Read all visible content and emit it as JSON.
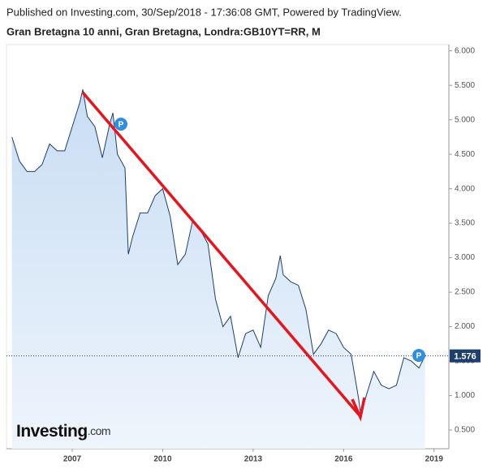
{
  "header": {
    "published": "Published on Investing.com, 30/Sep/2018 - 17:36:08 GMT, Powered by TradingView.",
    "title": "Gran Bretagna 10 anni, Gran Bretagna, Londra:GB10YT=RR, M"
  },
  "logo": {
    "brand": "Investing",
    "suffix": ".com"
  },
  "chart_data": {
    "type": "area",
    "x": [
      2005.0,
      2005.25,
      2005.5,
      2005.75,
      2006.0,
      2006.25,
      2006.5,
      2006.75,
      2007.0,
      2007.25,
      2007.35,
      2007.5,
      2007.75,
      2008.0,
      2008.25,
      2008.35,
      2008.5,
      2008.75,
      2008.86,
      2009.0,
      2009.25,
      2009.5,
      2009.75,
      2010.0,
      2010.25,
      2010.5,
      2010.75,
      2011.0,
      2011.25,
      2011.5,
      2011.75,
      2012.0,
      2012.25,
      2012.5,
      2012.75,
      2013.0,
      2013.25,
      2013.5,
      2013.75,
      2013.9,
      2014.0,
      2014.25,
      2014.5,
      2014.75,
      2015.0,
      2015.25,
      2015.5,
      2015.75,
      2016.0,
      2016.25,
      2016.5,
      2016.57,
      2016.75,
      2017.0,
      2017.25,
      2017.5,
      2017.75,
      2018.0,
      2018.25,
      2018.5,
      2018.7
    ],
    "series": [
      {
        "name": "GB10YT=RR",
        "color": "#1c3f6e",
        "values": [
          4.75,
          4.4,
          4.25,
          4.25,
          4.35,
          4.65,
          4.55,
          4.55,
          4.9,
          5.25,
          5.44,
          5.05,
          4.9,
          4.45,
          4.95,
          5.1,
          4.5,
          4.3,
          3.05,
          3.3,
          3.65,
          3.65,
          3.9,
          4.0,
          3.6,
          2.9,
          3.05,
          3.55,
          3.4,
          3.2,
          2.4,
          2.0,
          2.15,
          1.55,
          1.9,
          1.95,
          1.7,
          2.45,
          2.7,
          3.03,
          2.75,
          2.65,
          2.6,
          2.25,
          1.6,
          1.75,
          1.95,
          1.9,
          1.7,
          1.6,
          0.95,
          0.71,
          1.0,
          1.35,
          1.15,
          1.1,
          1.15,
          1.55,
          1.5,
          1.4,
          1.576
        ]
      }
    ],
    "xlim": [
      2004.82,
      2019.49
    ],
    "xticks": [
      2007,
      2010,
      2013,
      2016,
      2019
    ],
    "ylim": [
      0.23,
      6.09
    ],
    "yticks": [
      {
        "value": 0.5,
        "label": "0.500"
      },
      {
        "value": 1,
        "label": "1.000"
      },
      {
        "value": 1.5,
        "label": "1.500"
      },
      {
        "value": 2,
        "label": "2.000"
      },
      {
        "value": 2.5,
        "label": "2.500"
      },
      {
        "value": 3,
        "label": "3.000"
      },
      {
        "value": 3.5,
        "label": "3.500"
      },
      {
        "value": 4,
        "label": "4.000"
      },
      {
        "value": 4.5,
        "label": "4.500"
      },
      {
        "value": 5,
        "label": "5.000"
      },
      {
        "value": 5.5,
        "label": "5.500"
      },
      {
        "value": 6,
        "label": "6.000"
      }
    ],
    "fill": "#dbe9f8"
  }
}
